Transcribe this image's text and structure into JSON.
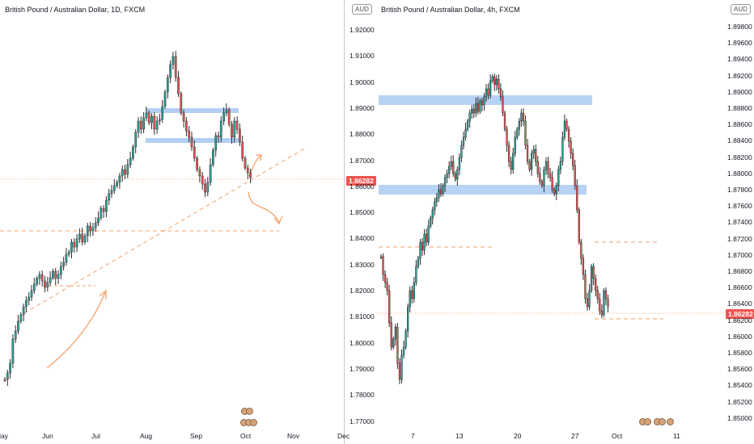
{
  "left_chart": {
    "title": "British Pound / Australian Dollar, 1D, FXCM",
    "currency_badge": "AUD",
    "last_price": "1.86282",
    "y_ticks": [
      "1.92000",
      "1.91000",
      "1.90000",
      "1.89000",
      "1.88000",
      "1.87000",
      "1.86000",
      "1.85000",
      "1.84000",
      "1.83000",
      "1.82000",
      "1.81000",
      "1.80000",
      "1.79000",
      "1.78000",
      "1.77000"
    ],
    "x_ticks": [
      "May",
      "Jun",
      "Jul",
      "Aug",
      "Sep",
      "Oct",
      "Nov",
      "Dec"
    ]
  },
  "right_chart": {
    "title": "British Pound / Australian Dollar, 4h, FXCM",
    "currency_badge": "AUD",
    "last_price": "1.86282",
    "y_ticks": [
      "1.89800",
      "1.89600",
      "1.89400",
      "1.89200",
      "1.89000",
      "1.88800",
      "1.88600",
      "1.88400",
      "1.88200",
      "1.88000",
      "1.87800",
      "1.87600",
      "1.87400",
      "1.87200",
      "1.87000",
      "1.86800",
      "1.86600",
      "1.86400",
      "1.86200",
      "1.86000",
      "1.85800",
      "1.85600",
      "1.85400",
      "1.85200",
      "1.85000"
    ],
    "x_ticks": [
      "7",
      "13",
      "20",
      "27",
      "Oct",
      "11"
    ]
  },
  "colors": {
    "up": "#26a69a",
    "down": "#ef5350",
    "candle": "#2f2f2f",
    "zone": "#9fc3f0",
    "annotation": "#f4a06a",
    "price_tag": "#ef5350"
  }
}
